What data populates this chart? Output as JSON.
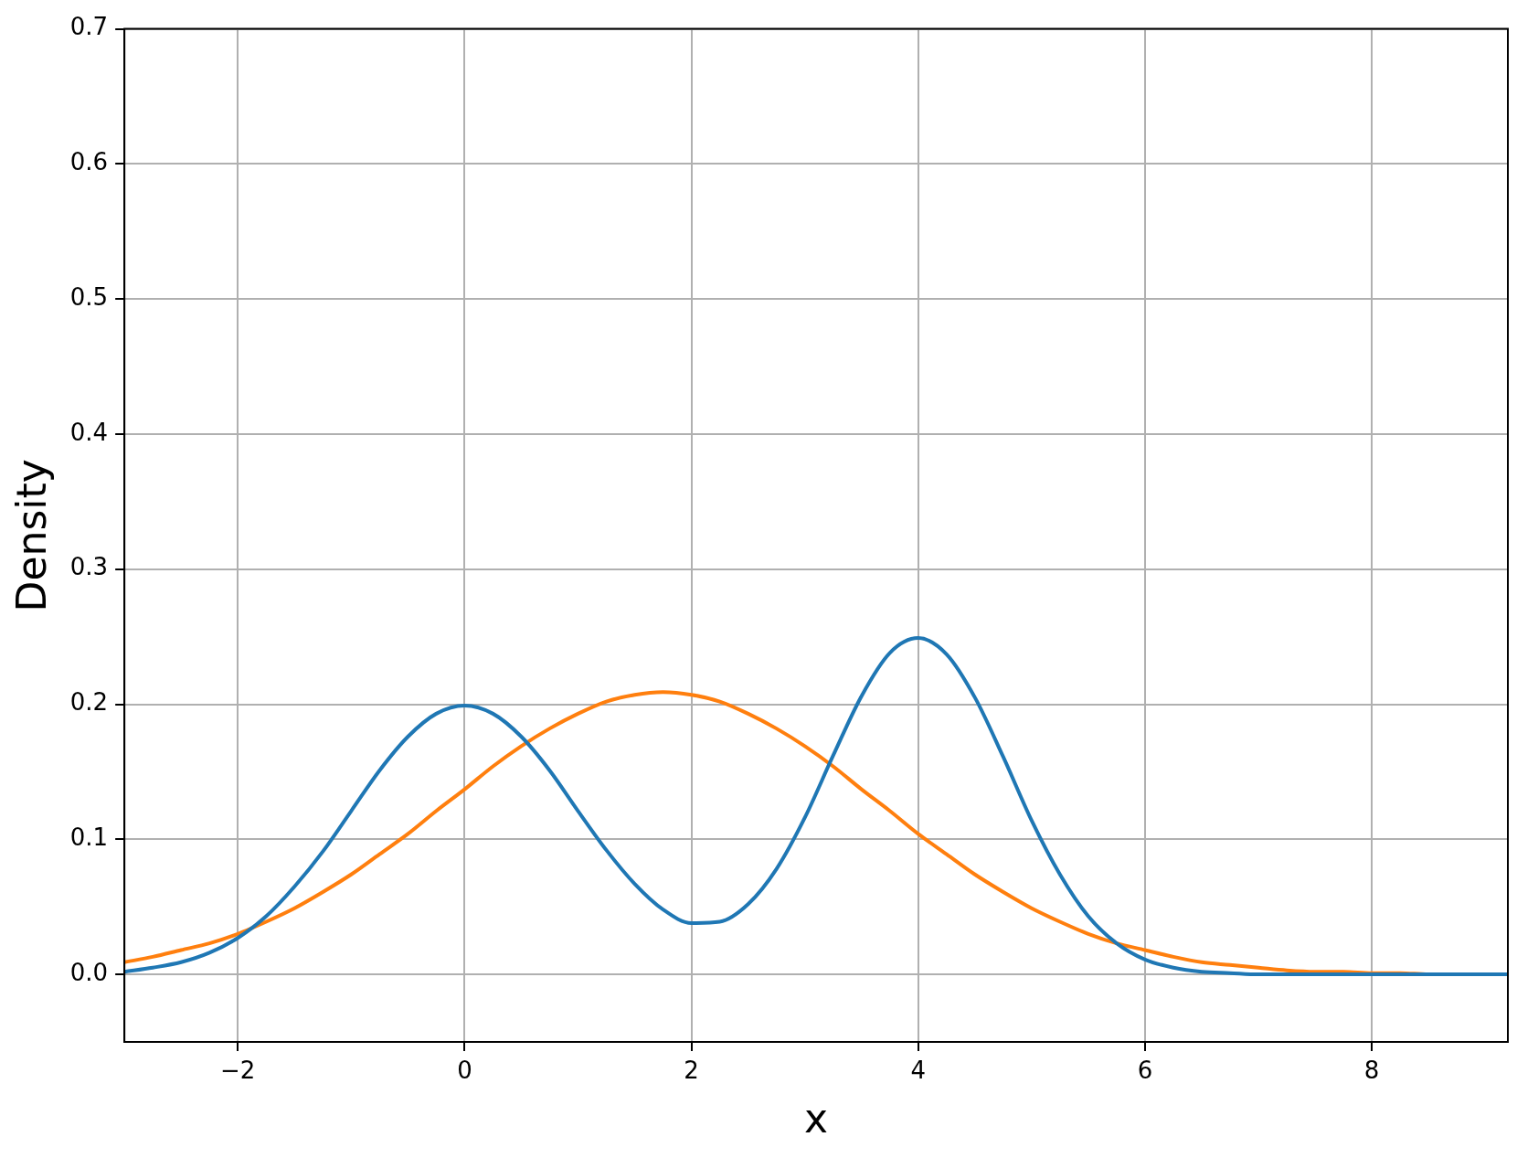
{
  "chart_data": {
    "type": "line",
    "xlabel": "x",
    "ylabel": "Density",
    "x": [
      -3,
      -2.75,
      -2.5,
      -2.25,
      -2,
      -1.75,
      -1.5,
      -1.25,
      -1,
      -0.75,
      -0.5,
      -0.25,
      0,
      0.25,
      0.5,
      0.75,
      1,
      1.25,
      1.5,
      1.75,
      2,
      2.25,
      2.5,
      2.75,
      3,
      3.25,
      3.5,
      3.75,
      4,
      4.25,
      4.5,
      4.75,
      5,
      5.25,
      5.5,
      5.75,
      6,
      6.25,
      6.5,
      6.75,
      7,
      7.25,
      7.5,
      7.75,
      8,
      8.25,
      8.5,
      8.75,
      9,
      9.2
    ],
    "series": [
      {
        "color": "#1f77b4",
        "values": [
          0.002,
          0.005,
          0.009,
          0.016,
          0.027,
          0.043,
          0.065,
          0.091,
          0.121,
          0.151,
          0.176,
          0.193,
          0.199,
          0.193,
          0.176,
          0.151,
          0.121,
          0.092,
          0.067,
          0.048,
          0.038,
          0.039,
          0.052,
          0.078,
          0.116,
          0.162,
          0.206,
          0.238,
          0.249,
          0.237,
          0.205,
          0.161,
          0.114,
          0.074,
          0.043,
          0.023,
          0.011,
          0.005,
          0.002,
          0.001,
          0,
          0,
          0,
          0,
          0,
          0,
          0,
          0,
          0,
          0
        ]
      },
      {
        "color": "#ff7f0e",
        "values": [
          0.009,
          0.013,
          0.018,
          0.023,
          0.03,
          0.039,
          0.049,
          0.061,
          0.074,
          0.089,
          0.104,
          0.121,
          0.137,
          0.154,
          0.169,
          0.182,
          0.193,
          0.202,
          0.207,
          0.209,
          0.207,
          0.202,
          0.193,
          0.182,
          0.169,
          0.154,
          0.137,
          0.121,
          0.104,
          0.089,
          0.074,
          0.061,
          0.049,
          0.039,
          0.03,
          0.023,
          0.018,
          0.013,
          0.009,
          0.007,
          0.005,
          0.003,
          0.002,
          0.002,
          0.001,
          0.001,
          0,
          0,
          null,
          null
        ]
      }
    ],
    "xlim": [
      -3,
      9.2
    ],
    "xticks": [
      -2,
      0,
      2,
      4,
      6,
      8
    ],
    "ylim": [
      -0.05,
      0.7
    ],
    "yticks": [
      {
        "value": 0,
        "label": "0.0"
      },
      0.1,
      0.2,
      0.3,
      0.4,
      0.5,
      0.6,
      0.7
    ],
    "grid": true,
    "legend": false,
    "marker": "none",
    "line_style": "solid"
  }
}
